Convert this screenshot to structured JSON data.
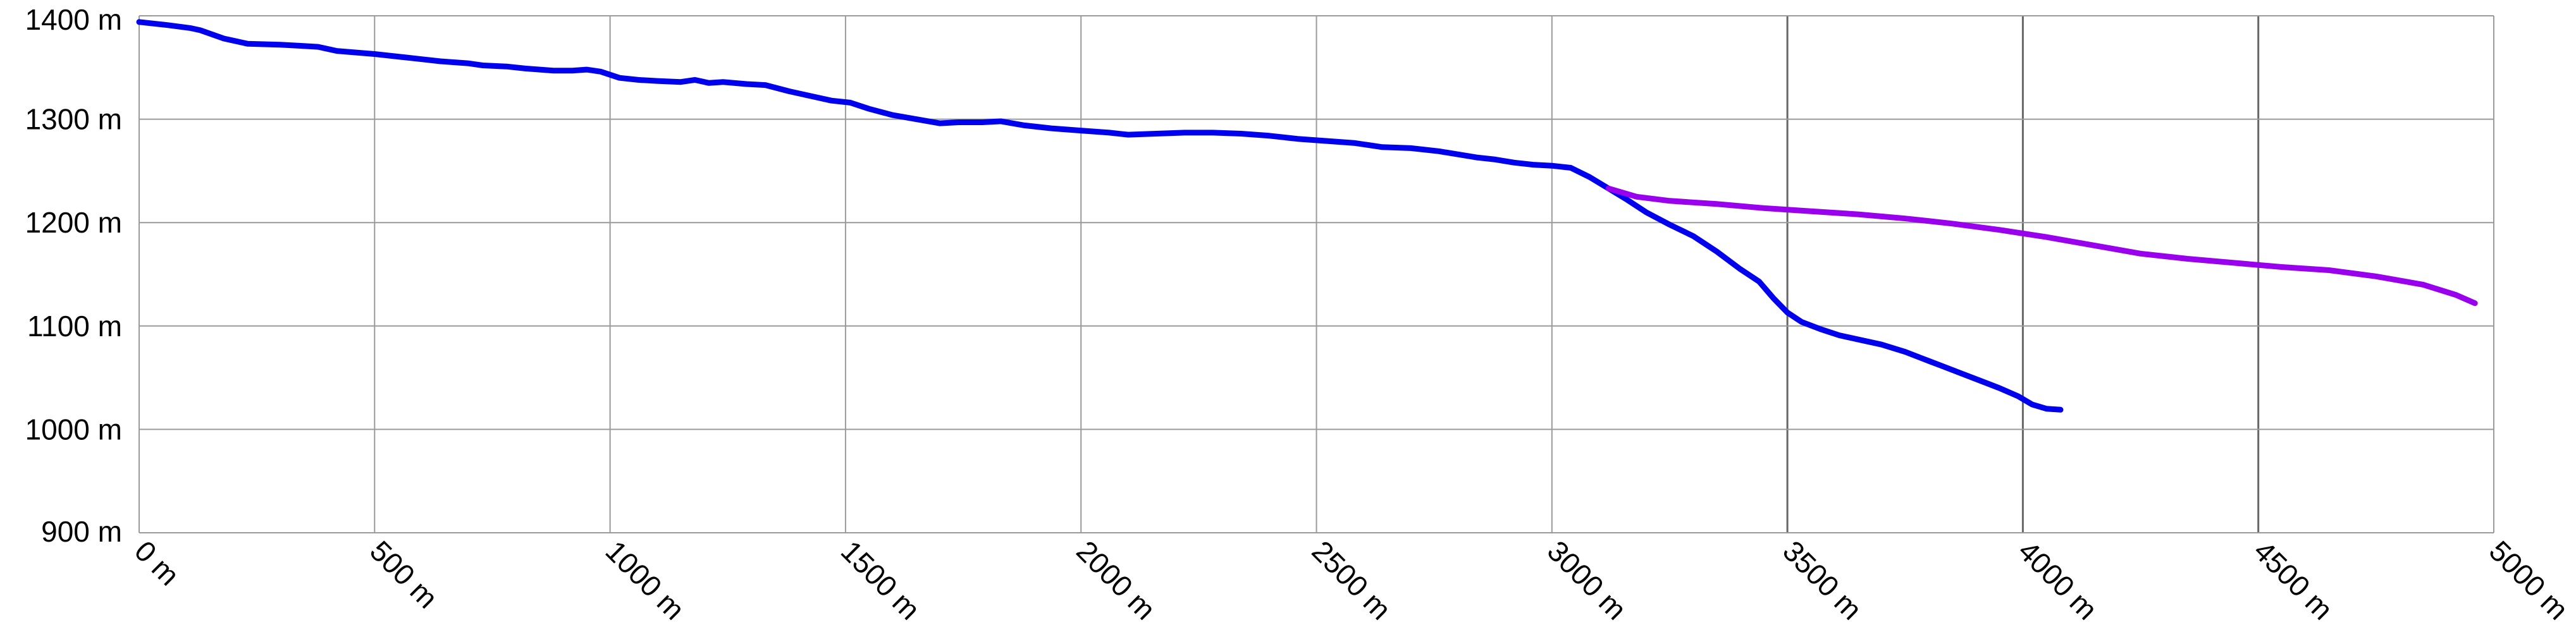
{
  "chart_data": {
    "type": "line",
    "title": "",
    "xlabel": "",
    "ylabel": "",
    "xlim": [
      0,
      5000
    ],
    "ylim": [
      900,
      1400
    ],
    "x_ticks": [
      "0 m",
      "500 m",
      "1000 m",
      "1500 m",
      "2000 m",
      "2500 m",
      "3000 m",
      "3500 m",
      "4000 m",
      "4500 m",
      "5000 m"
    ],
    "y_ticks": [
      "900 m",
      "1000 m",
      "1100 m",
      "1200 m",
      "1300 m",
      "1400 m"
    ],
    "grid": true,
    "legend": "none",
    "series": [
      {
        "color": "#0000ee",
        "points": [
          [
            0,
            1394
          ],
          [
            60,
            1391
          ],
          [
            110,
            1388
          ],
          [
            130,
            1386
          ],
          [
            180,
            1378
          ],
          [
            230,
            1373
          ],
          [
            300,
            1372
          ],
          [
            340,
            1371
          ],
          [
            380,
            1370
          ],
          [
            420,
            1366
          ],
          [
            500,
            1363
          ],
          [
            560,
            1360
          ],
          [
            600,
            1358
          ],
          [
            640,
            1356
          ],
          [
            700,
            1354
          ],
          [
            730,
            1352
          ],
          [
            780,
            1351
          ],
          [
            820,
            1349
          ],
          [
            880,
            1347
          ],
          [
            920,
            1347
          ],
          [
            950,
            1348
          ],
          [
            980,
            1346
          ],
          [
            1020,
            1340
          ],
          [
            1060,
            1338
          ],
          [
            1100,
            1337
          ],
          [
            1150,
            1336
          ],
          [
            1180,
            1338
          ],
          [
            1210,
            1335
          ],
          [
            1240,
            1336
          ],
          [
            1290,
            1334
          ],
          [
            1330,
            1333
          ],
          [
            1380,
            1327
          ],
          [
            1430,
            1322
          ],
          [
            1470,
            1318
          ],
          [
            1510,
            1316
          ],
          [
            1550,
            1310
          ],
          [
            1600,
            1304
          ],
          [
            1650,
            1300
          ],
          [
            1700,
            1296
          ],
          [
            1740,
            1297
          ],
          [
            1790,
            1297
          ],
          [
            1830,
            1298
          ],
          [
            1880,
            1294
          ],
          [
            1940,
            1291
          ],
          [
            2000,
            1289
          ],
          [
            2060,
            1287
          ],
          [
            2100,
            1285
          ],
          [
            2160,
            1286
          ],
          [
            2220,
            1287
          ],
          [
            2280,
            1287
          ],
          [
            2340,
            1286
          ],
          [
            2400,
            1284
          ],
          [
            2460,
            1281
          ],
          [
            2520,
            1279
          ],
          [
            2580,
            1277
          ],
          [
            2640,
            1273
          ],
          [
            2700,
            1272
          ],
          [
            2760,
            1269
          ],
          [
            2800,
            1266
          ],
          [
            2840,
            1263
          ],
          [
            2880,
            1261
          ],
          [
            2920,
            1258
          ],
          [
            2960,
            1256
          ],
          [
            3000,
            1255
          ],
          [
            3040,
            1253
          ],
          [
            3080,
            1244
          ],
          [
            3120,
            1233
          ],
          [
            3160,
            1222
          ],
          [
            3200,
            1210
          ],
          [
            3250,
            1198
          ],
          [
            3300,
            1187
          ],
          [
            3350,
            1172
          ],
          [
            3400,
            1155
          ],
          [
            3440,
            1143
          ],
          [
            3470,
            1127
          ],
          [
            3500,
            1113
          ],
          [
            3530,
            1104
          ],
          [
            3570,
            1097
          ],
          [
            3610,
            1091
          ],
          [
            3660,
            1086
          ],
          [
            3700,
            1082
          ],
          [
            3750,
            1075
          ],
          [
            3790,
            1068
          ],
          [
            3830,
            1061
          ],
          [
            3870,
            1054
          ],
          [
            3910,
            1047
          ],
          [
            3950,
            1040
          ],
          [
            3990,
            1032
          ],
          [
            4020,
            1024
          ],
          [
            4050,
            1020
          ],
          [
            4080,
            1019
          ]
        ]
      },
      {
        "color": "#9900ee",
        "points": [
          [
            3120,
            1233
          ],
          [
            3180,
            1225
          ],
          [
            3250,
            1221
          ],
          [
            3350,
            1218
          ],
          [
            3450,
            1214
          ],
          [
            3550,
            1211
          ],
          [
            3650,
            1208
          ],
          [
            3750,
            1204
          ],
          [
            3850,
            1199
          ],
          [
            3950,
            1193
          ],
          [
            4050,
            1186
          ],
          [
            4150,
            1178
          ],
          [
            4250,
            1170
          ],
          [
            4350,
            1165
          ],
          [
            4450,
            1161
          ],
          [
            4550,
            1157
          ],
          [
            4650,
            1154
          ],
          [
            4750,
            1148
          ],
          [
            4850,
            1140
          ],
          [
            4920,
            1130
          ],
          [
            4960,
            1122
          ]
        ]
      }
    ]
  }
}
